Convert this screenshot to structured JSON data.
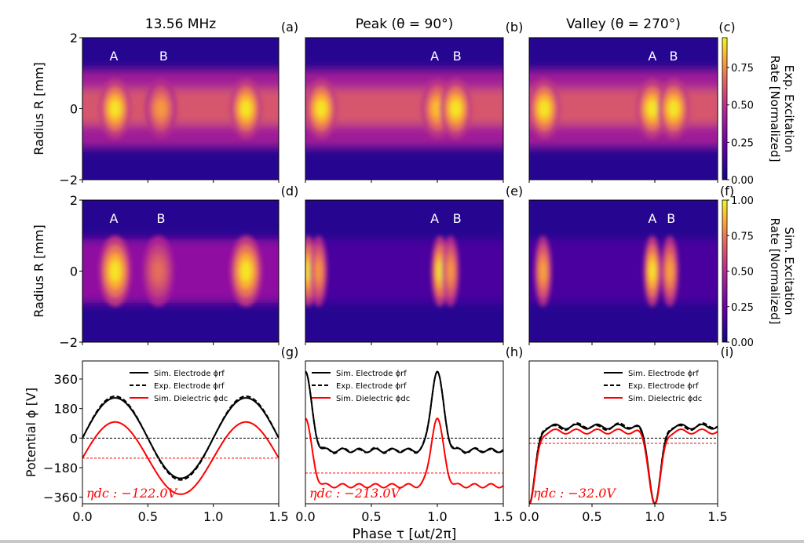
{
  "chart_data": [
    {
      "panel": "a",
      "type": "heatmap",
      "title": "13.56 MHz",
      "panel_label": "(a)",
      "ylabel": "Radius R [mm]",
      "xlim": [
        0.0,
        1.5
      ],
      "ylim": [
        -2,
        2
      ],
      "yticks": [
        "2",
        "0",
        "−2"
      ],
      "colormap": "plasma",
      "source": "experiment",
      "peaks": [
        {
          "label": "A",
          "tau": 0.25,
          "r": 0.0,
          "intensity": 1.0
        },
        {
          "label": "B",
          "tau": 0.6,
          "r": 0.0,
          "intensity": 0.7
        },
        {
          "label": "",
          "tau": 1.25,
          "r": 0.0,
          "intensity": 1.0
        }
      ],
      "annotations": [
        {
          "text": "A",
          "tau": 0.24
        },
        {
          "text": "B",
          "tau": 0.62
        }
      ]
    },
    {
      "panel": "b",
      "type": "heatmap",
      "title": "Peak (θ = 90°)",
      "panel_label": "(b)",
      "xlim": [
        0.0,
        1.5
      ],
      "ylim": [
        -2,
        2
      ],
      "colormap": "plasma",
      "source": "experiment",
      "peaks": [
        {
          "label": "",
          "tau": 0.12,
          "r": 0.0,
          "intensity": 1.0
        },
        {
          "label": "A",
          "tau": 1.0,
          "r": 0.0,
          "intensity": 0.85
        },
        {
          "label": "B",
          "tau": 1.14,
          "r": 0.0,
          "intensity": 1.0
        }
      ],
      "annotations": [
        {
          "text": "A",
          "tau": 0.98
        },
        {
          "text": "B",
          "tau": 1.15
        }
      ]
    },
    {
      "panel": "c",
      "type": "heatmap",
      "title": "Valley (θ = 270°)",
      "panel_label": "(c)",
      "xlim": [
        0.0,
        1.5
      ],
      "ylim": [
        -2,
        2
      ],
      "colormap": "plasma",
      "source": "experiment",
      "colorbar": {
        "label": "Exp. Excitation Rate [Normalized]",
        "ticks": [
          "0.00",
          "0.25",
          "0.50",
          "0.75"
        ],
        "range": [
          0,
          0.95
        ]
      },
      "peaks": [
        {
          "label": "",
          "tau": 0.12,
          "r": 0.0,
          "intensity": 1.0
        },
        {
          "label": "A",
          "tau": 0.98,
          "r": 0.0,
          "intensity": 1.0
        },
        {
          "label": "B",
          "tau": 1.15,
          "r": 0.0,
          "intensity": 1.0
        }
      ],
      "annotations": [
        {
          "text": "A",
          "tau": 0.98
        },
        {
          "text": "B",
          "tau": 1.15
        }
      ]
    },
    {
      "panel": "d",
      "type": "heatmap",
      "panel_label": "(d)",
      "ylabel": "Radius R [mm]",
      "xlim": [
        0.0,
        1.5
      ],
      "ylim": [
        -2,
        2
      ],
      "yticks": [
        "2",
        "0",
        "−2"
      ],
      "colormap": "plasma",
      "source": "simulation",
      "peaks": [
        {
          "label": "A",
          "tau": 0.25,
          "r": 0.0,
          "intensity": 1.0
        },
        {
          "label": "B",
          "tau": 0.58,
          "r": 0.0,
          "intensity": 0.5
        },
        {
          "label": "",
          "tau": 1.25,
          "r": 0.0,
          "intensity": 1.0
        }
      ],
      "annotations": [
        {
          "text": "A",
          "tau": 0.24
        },
        {
          "text": "B",
          "tau": 0.6
        }
      ]
    },
    {
      "panel": "e",
      "type": "heatmap",
      "panel_label": "(e)",
      "xlim": [
        0.0,
        1.5
      ],
      "ylim": [
        -2,
        2
      ],
      "colormap": "plasma",
      "source": "simulation",
      "peaks": [
        {
          "label": "",
          "tau": 0.02,
          "r": 0.0,
          "intensity": 1.0
        },
        {
          "label": "",
          "tau": 0.1,
          "r": 0.0,
          "intensity": 0.7
        },
        {
          "label": "A",
          "tau": 1.02,
          "r": 0.0,
          "intensity": 1.0
        },
        {
          "label": "B",
          "tau": 1.1,
          "r": 0.0,
          "intensity": 0.7
        }
      ],
      "annotations": [
        {
          "text": "A",
          "tau": 0.98
        },
        {
          "text": "B",
          "tau": 1.15
        }
      ]
    },
    {
      "panel": "f",
      "type": "heatmap",
      "panel_label": "(f)",
      "xlim": [
        0.0,
        1.5
      ],
      "ylim": [
        -2,
        2
      ],
      "colormap": "plasma",
      "source": "simulation",
      "colorbar": {
        "label": "Sim. Excitation Rate [Normalized]",
        "ticks": [
          "0.00",
          "0.25",
          "0.50",
          "0.75",
          "1.00"
        ],
        "range": [
          0,
          1.0
        ]
      },
      "peaks": [
        {
          "label": "",
          "tau": 0.11,
          "r": 0.0,
          "intensity": 0.75
        },
        {
          "label": "A",
          "tau": 0.98,
          "r": 0.0,
          "intensity": 1.0
        },
        {
          "label": "B",
          "tau": 1.12,
          "r": 0.0,
          "intensity": 0.75
        }
      ],
      "annotations": [
        {
          "text": "A",
          "tau": 0.98
        },
        {
          "text": "B",
          "tau": 1.13
        }
      ]
    },
    {
      "panel": "g",
      "type": "line",
      "panel_label": "(g)",
      "ylabel": "Potential ϕ [V]",
      "xlim": [
        0.0,
        1.5
      ],
      "ylim": [
        -400,
        470
      ],
      "xticks": [
        "0.0",
        "0.5",
        "1.0",
        "1.5"
      ],
      "yticks": [
        {
          "v": 360,
          "t": "360"
        },
        {
          "v": 180,
          "t": "180"
        },
        {
          "v": 0,
          "t": "0"
        },
        {
          "v": -180,
          "t": "−180"
        },
        {
          "v": -360,
          "t": "−360"
        }
      ],
      "legend": [
        "Sim. Electrode ϕrf",
        "Exp. Electrode ϕrf",
        "Sim. Dielectric ϕdc"
      ],
      "legend_position": "top-center",
      "annotation": "ηdc : −122.0V",
      "eta_dc": -122.0,
      "mode": "sine",
      "amp_rf": 245,
      "amp_dc_swing": 220
    },
    {
      "panel": "h",
      "type": "line",
      "panel_label": "(h)",
      "xlim": [
        0.0,
        1.5
      ],
      "ylim": [
        -400,
        470
      ],
      "xticks": [
        "0.0",
        "0.5",
        "1.0",
        "1.5"
      ],
      "xlabel": "Phase τ [ωt/2π]",
      "legend": [
        "Sim. Electrode ϕrf",
        "Exp. Electrode ϕrf",
        "Sim. Dielectric ϕdc"
      ],
      "legend_position": "top-left",
      "annotation": "ηdc : −213.0V",
      "eta_dc": -213.0,
      "mode": "peak",
      "rf_peak": 405,
      "rf_base": -75,
      "dc_peak": 120,
      "dc_base": -290
    },
    {
      "panel": "i",
      "type": "line",
      "panel_label": "(i)",
      "xlim": [
        0.0,
        1.5
      ],
      "ylim": [
        -400,
        470
      ],
      "xticks": [
        "0.0",
        "0.5",
        "1.0",
        "1.5"
      ],
      "legend": [
        "Sim. Electrode ϕrf",
        "Exp. Electrode ϕrf",
        "Sim. Dielectric ϕdc"
      ],
      "legend_position": "top-right",
      "annotation": "ηdc : −32.0V",
      "eta_dc": -32.0,
      "mode": "valley",
      "rf_valley": -400,
      "rf_base": 70,
      "dc_valley": -405,
      "dc_base": 40
    }
  ],
  "colors": {
    "sim_electrode": "#000000",
    "exp_electrode": "#000000",
    "sim_dielectric": "#ff0000",
    "annotation": "#ff0000",
    "peak_label": "#ffffff"
  }
}
